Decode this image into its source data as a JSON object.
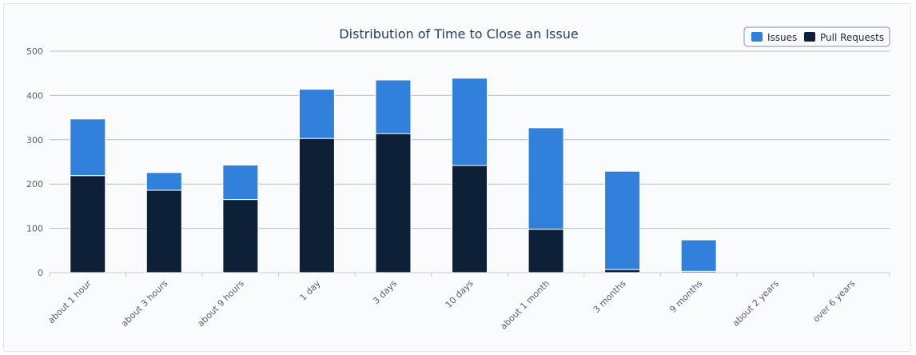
{
  "chart_data": {
    "type": "bar",
    "stacked": true,
    "title": "Distribution of Time to Close an Issue",
    "xlabel": "",
    "ylabel": "",
    "ylim": [
      0,
      500
    ],
    "yticks": [
      0,
      100,
      200,
      300,
      400,
      500
    ],
    "grid": true,
    "legend_position": "top-right",
    "categories": [
      "about 1 hour",
      "about 3 hours",
      "about 9 hours",
      "1 day",
      "3 days",
      "10 days",
      "about 1 month",
      "3 months",
      "9 months",
      "about 2 years",
      "over 6 years"
    ],
    "series": [
      {
        "name": "Pull Requests",
        "color": "#0d2038",
        "values": [
          219,
          186,
          165,
          303,
          314,
          242,
          98,
          7,
          3,
          0,
          0
        ]
      },
      {
        "name": "Issues",
        "color": "#3080dc",
        "values": [
          128,
          40,
          78,
          111,
          121,
          197,
          229,
          222,
          71,
          0,
          0
        ]
      }
    ],
    "legend_order": [
      "Issues",
      "Pull Requests"
    ]
  }
}
